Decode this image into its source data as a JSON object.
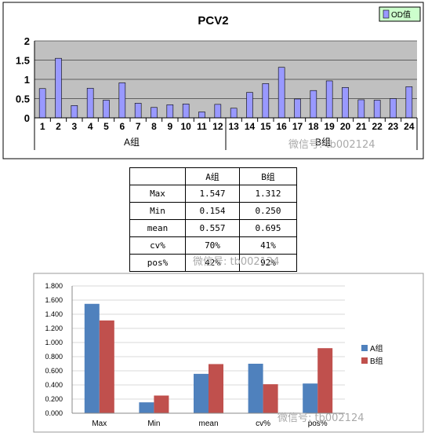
{
  "chart_data": [
    {
      "type": "bar",
      "title": "PCV2",
      "legend": [
        "OD值"
      ],
      "legend_position": "top-right",
      "categories": [
        "1",
        "2",
        "3",
        "4",
        "5",
        "6",
        "7",
        "8",
        "9",
        "10",
        "11",
        "12",
        "13",
        "14",
        "15",
        "16",
        "17",
        "18",
        "19",
        "20",
        "21",
        "22",
        "23",
        "24"
      ],
      "groups": [
        {
          "label": "A组",
          "categories": [
            "1",
            "2",
            "3",
            "4",
            "5",
            "6",
            "7",
            "8",
            "9",
            "10",
            "11",
            "12"
          ]
        },
        {
          "label": "B组",
          "categories": [
            "13",
            "14",
            "15",
            "16",
            "17",
            "18",
            "19",
            "20",
            "21",
            "22",
            "23",
            "24"
          ]
        }
      ],
      "series": [
        {
          "name": "OD值",
          "values": [
            0.76,
            1.547,
            0.32,
            0.77,
            0.46,
            0.91,
            0.38,
            0.27,
            0.34,
            0.36,
            0.154,
            0.35,
            0.25,
            0.66,
            0.89,
            1.312,
            0.49,
            0.71,
            0.96,
            0.79,
            0.47,
            0.46,
            0.5,
            0.81
          ]
        }
      ],
      "yticks": [
        "0",
        "0.5",
        "1",
        "1.5",
        "2"
      ],
      "ylim": [
        0,
        2
      ],
      "grid": true
    },
    {
      "type": "bar",
      "categories": [
        "Max",
        "Min",
        "mean",
        "cv%",
        "pos%"
      ],
      "series": [
        {
          "name": "A组",
          "values": [
            1.547,
            0.154,
            0.557,
            0.7,
            0.42
          ]
        },
        {
          "name": "B组",
          "values": [
            1.312,
            0.25,
            0.695,
            0.41,
            0.92
          ]
        }
      ],
      "yticks": [
        "0.000",
        "0.200",
        "0.400",
        "0.600",
        "0.800",
        "1.000",
        "1.200",
        "1.400",
        "1.600",
        "1.800"
      ],
      "ylim": [
        0,
        1.8
      ],
      "legend_position": "right",
      "grid": true
    }
  ],
  "table": {
    "headers": [
      "",
      "A组",
      "B组"
    ],
    "rows": [
      [
        "Max",
        "1.547",
        "1.312"
      ],
      [
        "Min",
        "0.154",
        "0.250"
      ],
      [
        "mean",
        "0.557",
        "0.695"
      ],
      [
        "cv%",
        "70%",
        "41%"
      ],
      [
        "pos%",
        "42%",
        "92%"
      ]
    ]
  },
  "watermarks": [
    "微信号: tb002124",
    "微信号: tb002124",
    "微信号: tb002124"
  ],
  "colors": {
    "od_bar": "#9999ff",
    "plot_bg": "#c0c0c0",
    "series_a": "#4f81bd",
    "series_b": "#c0504d"
  }
}
